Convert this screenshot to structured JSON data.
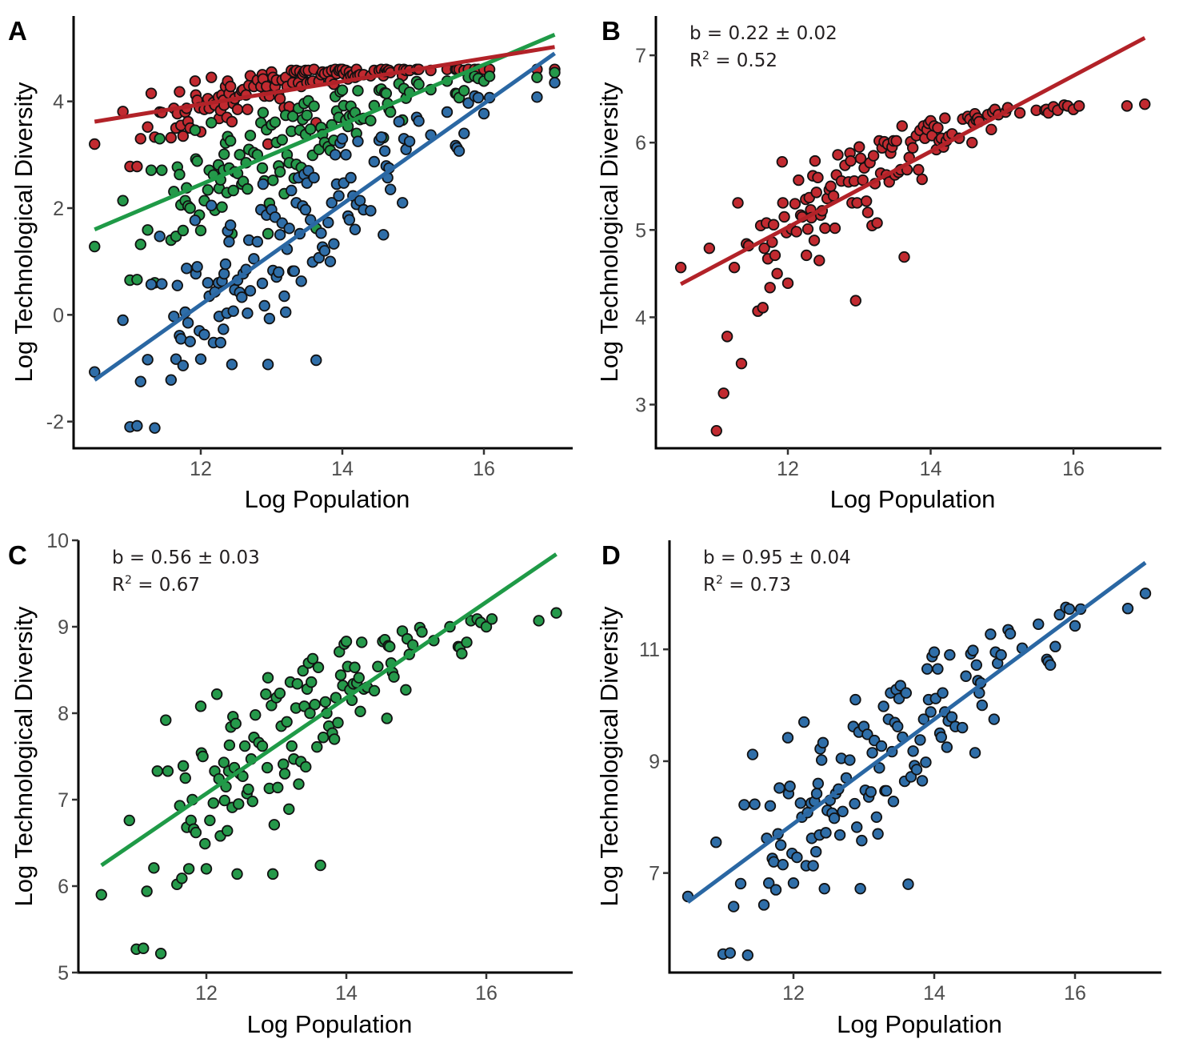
{
  "figure": {
    "panels": [
      "A",
      "B",
      "C",
      "D"
    ]
  },
  "chart_data": [
    {
      "panel": "A",
      "type": "scatter",
      "title": "",
      "letter": "A",
      "xlabel": "Log Population",
      "ylabel": "Log Technological Diversity",
      "xlim": [
        10.2,
        17.4
      ],
      "ylim": [
        -2.5,
        5.6
      ],
      "xticks": [
        12,
        14,
        16
      ],
      "yticks": [
        -2,
        0,
        2,
        4
      ],
      "xtick_labels": [
        "12",
        "14",
        "16"
      ],
      "ytick_labels": [
        "-2",
        "0",
        "2",
        "4"
      ],
      "annotation": null,
      "grid": false,
      "legend": null,
      "series": [
        {
          "name": "red",
          "color": "#c22a30",
          "line_color": "#b22228",
          "derived_from": "B",
          "transform": "compressed",
          "fit": {
            "x": [
              10.5,
              17.0
            ],
            "y": [
              3.62,
              5.02
            ]
          }
        },
        {
          "name": "green",
          "color": "#25994a",
          "line_color": "#1f9a47",
          "derived_from": "C",
          "offset": -4.62,
          "fit": {
            "x": [
              10.5,
              17.0
            ],
            "y": [
              1.6,
              5.25
            ]
          }
        },
        {
          "name": "blue",
          "color": "#2f6ea8",
          "line_color": "#2a67a3",
          "derived_from": "D",
          "offset": -7.65,
          "fit": {
            "x": [
              10.5,
              17.0
            ],
            "y": [
              -1.22,
              4.9
            ]
          }
        }
      ]
    },
    {
      "panel": "B",
      "type": "scatter",
      "letter": "B",
      "xlabel": "Log Population",
      "ylabel": "Log Technological Diversity",
      "xlim": [
        10.2,
        17.4
      ],
      "ylim": [
        2.5,
        7.45
      ],
      "xticks": [
        12,
        14,
        16
      ],
      "yticks": [
        3,
        4,
        5,
        6,
        7
      ],
      "xtick_labels": [
        "12",
        "14",
        "16"
      ],
      "ytick_labels": [
        "3",
        "4",
        "5",
        "6",
        "7"
      ],
      "annotation": {
        "b": "b = 0.22 ± 0.02",
        "r2_prefix": "R",
        "r2_sup": "2",
        "r2_rest": " = 0.52"
      },
      "slope": 0.22,
      "slope_se": 0.02,
      "r_squared": 0.52,
      "grid": false,
      "color": "#c22a30",
      "line_color": "#b22228",
      "fit": {
        "x": [
          10.5,
          17.0
        ],
        "y": [
          4.38,
          7.2
        ]
      }
    },
    {
      "panel": "C",
      "type": "scatter",
      "letter": "C",
      "xlabel": "Log Population",
      "ylabel": "Log Technological Diversity",
      "xlim": [
        10.2,
        17.4
      ],
      "ylim": [
        5.0,
        10.0
      ],
      "xticks": [
        12,
        14,
        16
      ],
      "yticks": [
        5,
        6,
        7,
        8,
        9,
        10
      ],
      "xtick_labels": [
        "12",
        "14",
        "16"
      ],
      "ytick_labels": [
        "5",
        "6",
        "7",
        "8",
        "9",
        "10"
      ],
      "annotation": {
        "b": "b = 0.56 ± 0.03",
        "r2_prefix": "R",
        "r2_sup": "2",
        "r2_rest": " = 0.67"
      },
      "slope": 0.56,
      "slope_se": 0.03,
      "r_squared": 0.67,
      "grid": false,
      "color": "#25994a",
      "line_color": "#1f9a47",
      "fit": {
        "x": [
          10.5,
          17.0
        ],
        "y": [
          6.24,
          9.84
        ]
      }
    },
    {
      "panel": "D",
      "type": "scatter",
      "letter": "D",
      "xlabel": "Log Population",
      "ylabel": "Log Technological Diversity",
      "xlim": [
        10.2,
        17.4
      ],
      "ylim": [
        5.22,
        12.95
      ],
      "xticks": [
        12,
        14,
        16
      ],
      "yticks": [
        7,
        9,
        11
      ],
      "xtick_labels": [
        "12",
        "14",
        "16"
      ],
      "ytick_labels": [
        "7",
        "9",
        "11"
      ],
      "annotation": {
        "b": "b = 0.95 ± 0.04",
        "r2_prefix": "R",
        "r2_sup": "2",
        "r2_rest": " = 0.73"
      },
      "slope": 0.95,
      "slope_se": 0.04,
      "r_squared": 0.73,
      "grid": false,
      "color": "#2f6ea8",
      "line_color": "#2a67a3",
      "fit": {
        "x": [
          10.5,
          17.0
        ],
        "y": [
          6.48,
          12.55
        ]
      }
    }
  ],
  "points": {
    "columns": [
      "x",
      "B",
      "C",
      "D"
    ],
    "rows": [
      [
        10.5,
        4.57,
        5.9,
        6.58
      ],
      [
        10.9,
        4.79,
        6.76,
        7.55
      ],
      [
        11.0,
        2.7,
        5.27,
        5.55
      ],
      [
        11.1,
        3.13,
        5.28,
        5.57
      ],
      [
        11.15,
        3.78,
        5.94,
        6.4
      ],
      [
        11.25,
        4.57,
        6.21,
        6.81
      ],
      [
        11.3,
        5.31,
        7.33,
        8.22
      ],
      [
        11.35,
        3.47,
        5.22,
        5.53
      ],
      [
        11.42,
        4.84,
        7.92,
        9.12
      ],
      [
        11.45,
        4.82,
        7.33,
        8.23
      ],
      [
        11.58,
        4.07,
        6.02,
        6.43
      ],
      [
        11.62,
        5.05,
        6.93,
        7.62
      ],
      [
        11.65,
        4.11,
        6.09,
        6.82
      ],
      [
        11.67,
        4.79,
        7.39,
        8.2
      ],
      [
        11.7,
        5.08,
        7.25,
        7.26
      ],
      [
        11.72,
        4.67,
        6.68,
        7.2
      ],
      [
        11.75,
        4.34,
        6.2,
        6.7
      ],
      [
        11.78,
        4.86,
        6.76,
        7.7
      ],
      [
        11.8,
        5.06,
        7.0,
        8.52
      ],
      [
        11.82,
        4.71,
        6.66,
        7.5
      ],
      [
        11.85,
        4.5,
        6.62,
        7.15
      ],
      [
        11.92,
        5.78,
        8.08,
        9.42
      ],
      [
        11.93,
        5.31,
        7.54,
        8.42
      ],
      [
        11.95,
        5.15,
        7.5,
        8.55
      ],
      [
        11.98,
        4.97,
        6.49,
        7.35
      ],
      [
        12.0,
        4.39,
        6.2,
        6.82
      ],
      [
        12.05,
        5.01,
        6.76,
        7.28
      ],
      [
        12.1,
        5.3,
        6.96,
        8.25
      ],
      [
        12.12,
        4.98,
        7.33,
        8.0
      ],
      [
        12.15,
        5.57,
        8.22,
        9.7
      ],
      [
        12.18,
        5.17,
        7.24,
        7.13
      ],
      [
        12.2,
        5.15,
        6.58,
        8.08
      ],
      [
        12.25,
        5.35,
        7.43,
        8.25
      ],
      [
        12.26,
        4.71,
        6.99,
        7.62
      ],
      [
        12.28,
        5.01,
        7.15,
        7.13
      ],
      [
        12.3,
        5.37,
        6.64,
        8.28
      ],
      [
        12.32,
        5.23,
        7.33,
        7.38
      ],
      [
        12.33,
        5.14,
        7.63,
        8.42
      ],
      [
        12.35,
        5.62,
        7.84,
        8.6
      ],
      [
        12.37,
        4.88,
        6.91,
        7.68
      ],
      [
        12.38,
        5.79,
        7.96,
        9.22
      ],
      [
        12.4,
        5.43,
        7.37,
        9.02
      ],
      [
        12.42,
        5.6,
        7.88,
        9.33
      ],
      [
        12.44,
        4.65,
        6.14,
        6.72
      ],
      [
        12.46,
        5.17,
        6.95,
        7.72
      ],
      [
        12.48,
        5.22,
        7.3,
        8.12
      ],
      [
        12.52,
        5.02,
        7.27,
        8.3
      ],
      [
        12.55,
        5.36,
        7.62,
        8.07
      ],
      [
        12.58,
        5.46,
        7.07,
        7.98
      ],
      [
        12.6,
        5.5,
        7.12,
        8.42
      ],
      [
        12.64,
        5.39,
        7.47,
        8.5
      ],
      [
        12.66,
        5.02,
        6.98,
        7.68
      ],
      [
        12.68,
        5.63,
        7.72,
        9.05
      ],
      [
        12.7,
        5.86,
        7.98,
        8.1
      ],
      [
        12.75,
        5.56,
        7.66,
        8.7
      ],
      [
        12.8,
        5.74,
        7.62,
        9.02
      ],
      [
        12.85,
        5.55,
        8.22,
        9.62
      ],
      [
        12.87,
        5.88,
        7.37,
        8.24
      ],
      [
        12.88,
        5.79,
        8.41,
        10.1
      ],
      [
        12.9,
        5.31,
        7.13,
        7.82
      ],
      [
        12.93,
        5.56,
        8.09,
        9.52
      ],
      [
        12.95,
        4.19,
        6.14,
        6.72
      ],
      [
        12.97,
        5.31,
        6.71,
        7.58
      ],
      [
        13.0,
        5.95,
        8.18,
        9.62
      ],
      [
        13.02,
        5.82,
        7.14,
        8.48
      ],
      [
        13.05,
        5.57,
        8.23,
        9.48
      ],
      [
        13.07,
        5.71,
        7.85,
        8.36
      ],
      [
        13.1,
        5.33,
        7.41,
        8.45
      ],
      [
        13.12,
        5.2,
        7.3,
        9.15
      ],
      [
        13.15,
        5.77,
        7.9,
        9.37
      ],
      [
        13.18,
        5.05,
        6.89,
        8.0
      ],
      [
        13.2,
        5.85,
        8.36,
        7.7
      ],
      [
        13.22,
        5.53,
        7.62,
        8.88
      ],
      [
        13.25,
        5.08,
        7.47,
        9.27
      ],
      [
        13.28,
        6.02,
        8.06,
        9.98
      ],
      [
        13.3,
        5.65,
        8.34,
        8.47
      ],
      [
        13.32,
        5.94,
        7.18,
        8.47
      ],
      [
        13.35,
        6.01,
        7.44,
        9.75
      ],
      [
        13.38,
        5.63,
        8.49,
        10.22
      ],
      [
        13.4,
        5.98,
        8.08,
        9.17
      ],
      [
        13.42,
        5.55,
        7.38,
        8.28
      ],
      [
        13.44,
        5.88,
        8.28,
        9.69
      ],
      [
        13.46,
        5.95,
        8.58,
        10.28
      ],
      [
        13.48,
        6.02,
        8.0,
        9.62
      ],
      [
        13.5,
        5.63,
        8.36,
        10.12
      ],
      [
        13.52,
        6.02,
        8.63,
        10.35
      ],
      [
        13.55,
        5.66,
        8.1,
        9.43
      ],
      [
        13.58,
        5.69,
        7.61,
        8.64
      ],
      [
        13.6,
        6.19,
        8.53,
        10.22
      ],
      [
        13.63,
        4.69,
        6.24,
        6.8
      ],
      [
        13.67,
        5.69,
        7.72,
        8.72
      ],
      [
        13.7,
        5.83,
        8.13,
        9.18
      ],
      [
        13.72,
        6.01,
        8.0,
        8.92
      ],
      [
        13.75,
        5.94,
        7.85,
        8.85
      ],
      [
        13.8,
        6.08,
        7.77,
        9.38
      ],
      [
        13.83,
        5.69,
        7.7,
        8.65
      ],
      [
        13.85,
        6.14,
        8.18,
        9.75
      ],
      [
        13.88,
        5.58,
        7.89,
        8.98
      ],
      [
        13.9,
        6.19,
        8.71,
        10.65
      ],
      [
        13.92,
        6.05,
        8.44,
        10.1
      ],
      [
        13.95,
        6.15,
        8.32,
        9.88
      ],
      [
        13.97,
        6.22,
        8.8,
        10.87
      ],
      [
        14.0,
        6.25,
        8.83,
        10.95
      ],
      [
        14.02,
        6.08,
        8.54,
        10.12
      ],
      [
        14.05,
        6.19,
        8.27,
        10.65
      ],
      [
        14.08,
        5.92,
        8.15,
        9.5
      ],
      [
        14.1,
        6.17,
        8.34,
        9.43
      ],
      [
        14.12,
        6.02,
        8.53,
        10.22
      ],
      [
        14.15,
        6.05,
        8.35,
        9.88
      ],
      [
        14.18,
        5.95,
        8.41,
        9.25
      ],
      [
        14.2,
        6.28,
        8.02,
        9.72
      ],
      [
        14.22,
        6.02,
        8.82,
        10.9
      ],
      [
        14.25,
        6.07,
        8.28,
        9.79
      ],
      [
        14.3,
        6.1,
        8.3,
        9.62
      ],
      [
        14.4,
        6.05,
        8.26,
        9.6
      ],
      [
        14.45,
        6.27,
        8.54,
        10.52
      ],
      [
        14.52,
        6.3,
        8.83,
        10.92
      ],
      [
        14.55,
        6.27,
        8.85,
        10.98
      ],
      [
        14.58,
        6.0,
        7.94,
        9.15
      ],
      [
        14.6,
        6.22,
        8.78,
        10.72
      ],
      [
        14.62,
        6.33,
        8.77,
        10.44
      ],
      [
        14.64,
        6.26,
        8.58,
        10.22
      ],
      [
        14.66,
        6.28,
        8.47,
        10.4
      ],
      [
        14.68,
        6.24,
        8.42,
        10.0
      ],
      [
        14.8,
        6.32,
        8.95,
        11.27
      ],
      [
        14.85,
        6.15,
        8.27,
        9.75
      ],
      [
        14.87,
        6.35,
        8.86,
        10.95
      ],
      [
        14.9,
        6.38,
        8.68,
        10.75
      ],
      [
        14.95,
        6.32,
        8.79,
        10.9
      ],
      [
        15.05,
        6.35,
        8.99,
        11.35
      ],
      [
        15.08,
        6.4,
        8.94,
        11.28
      ],
      [
        15.25,
        6.34,
        8.84,
        11.02
      ],
      [
        15.48,
        6.37,
        9.0,
        11.45
      ],
      [
        15.6,
        6.37,
        8.77,
        10.82
      ],
      [
        15.62,
        6.38,
        8.76,
        10.78
      ],
      [
        15.65,
        6.34,
        8.69,
        10.72
      ],
      [
        15.72,
        6.41,
        8.82,
        11.05
      ],
      [
        15.78,
        6.37,
        9.07,
        11.62
      ],
      [
        15.87,
        6.43,
        9.09,
        11.75
      ],
      [
        15.92,
        6.42,
        9.05,
        11.72
      ],
      [
        16.0,
        6.38,
        9.0,
        11.42
      ],
      [
        16.08,
        6.42,
        9.09,
        11.72
      ],
      [
        16.75,
        6.42,
        9.07,
        11.73
      ],
      [
        17.0,
        6.44,
        9.16,
        12.0
      ]
    ]
  },
  "panel_a_red": [
    3.2,
    3.81,
    2.78,
    2.78,
    3.3,
    3.52,
    4.15,
    3.33,
    3.8,
    3.79,
    3.32,
    3.87,
    3.5,
    3.77,
    4.18,
    3.55,
    3.35,
    3.8,
    3.87,
    3.62,
    3.5,
    4.38,
    4.12,
    4.02,
    3.88,
    3.43,
    3.85,
    4.05,
    3.87,
    4.45,
    3.98,
    3.93,
    4.08,
    3.68,
    3.83,
    4.12,
    4.02,
    3.93,
    4.28,
    3.7,
    4.38,
    4.15,
    4.28,
    3.62,
    3.96,
    4.05,
    3.85,
    4.12,
    4.2,
    4.22,
    4.12,
    3.85,
    4.3,
    4.48,
    4.28,
    4.4,
    4.28,
    4.5,
    4.42,
    4.1,
    4.28,
    3.2,
    4.1,
    4.55,
    4.45,
    4.28,
    4.4,
    4.12,
    4.05,
    4.4,
    3.88,
    4.45,
    4.28,
    3.9,
    4.58,
    4.35,
    4.55,
    4.58,
    4.35,
    4.56,
    4.28,
    4.5,
    4.55,
    4.58,
    4.35,
    4.58,
    4.36,
    4.38,
    4.6,
    3.6,
    4.38,
    4.5,
    4.55,
    4.52,
    4.55,
    4.38,
    4.58,
    4.32,
    4.6,
    4.52,
    4.58,
    4.6,
    4.6,
    4.52,
    4.58,
    4.42,
    4.55,
    4.48,
    4.5,
    4.45,
    4.6,
    4.48,
    4.5,
    4.5,
    4.48,
    4.58,
    4.58,
    4.6,
    4.48,
    4.56,
    4.6,
    4.56,
    4.58,
    4.54,
    4.6,
    4.48,
    4.6,
    4.58,
    4.58,
    4.6,
    4.6,
    4.58,
    4.6,
    4.6,
    4.6,
    4.6,
    4.58,
    4.6,
    4.6,
    4.6,
    4.6,
    4.6,
    4.6,
    4.6,
    4.62,
    4.6
  ]
}
